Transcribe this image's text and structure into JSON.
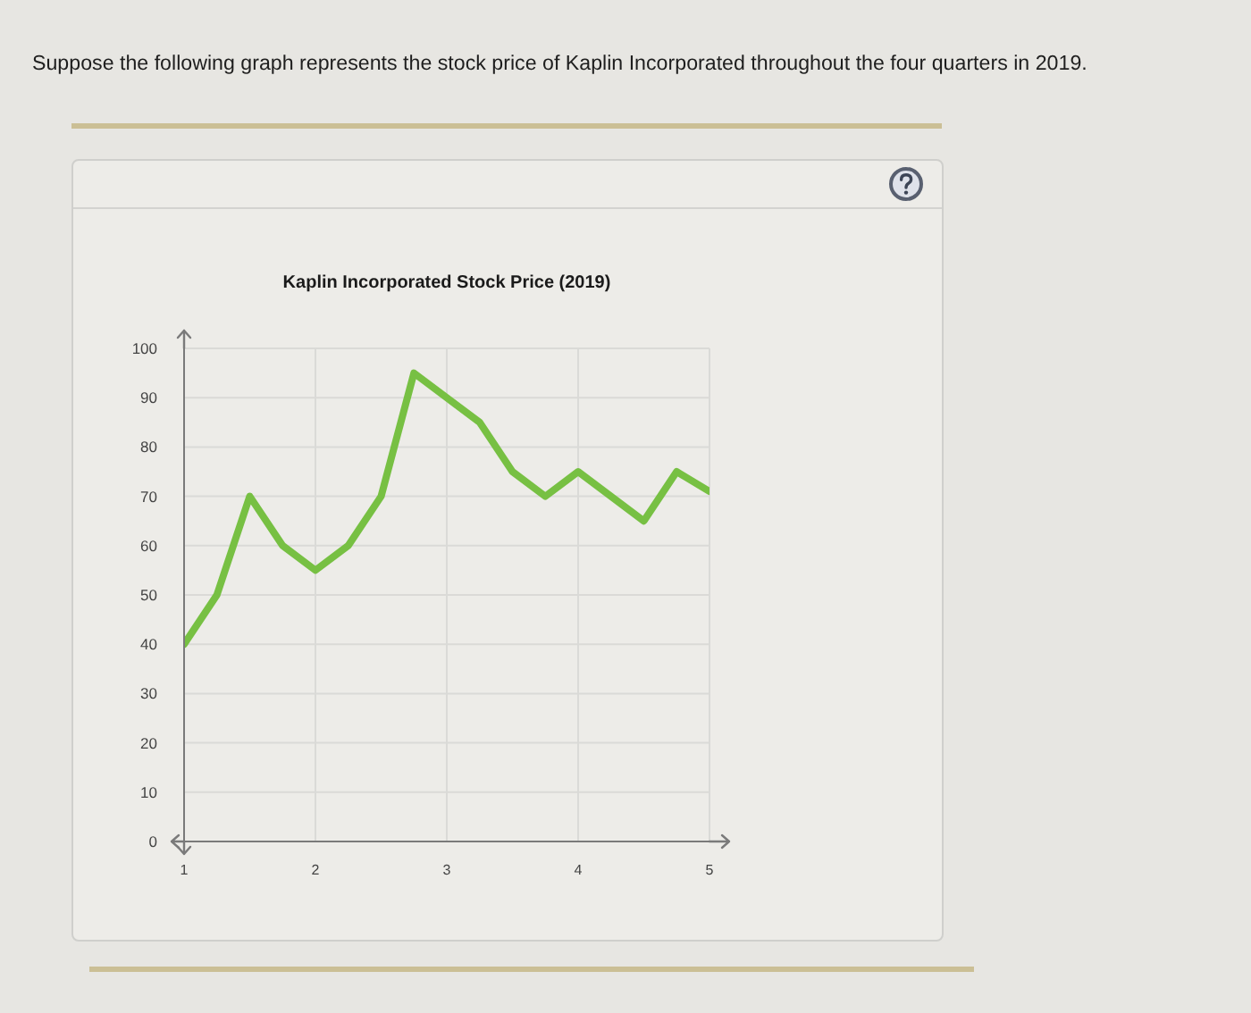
{
  "chart_data": {
    "type": "line",
    "title": "Kaplin Incorporated Stock Price (2019)",
    "annotations": [
      "Suppose the following graph represents the stock price of Kaplin Incorporated throughout the four quarters in 2019."
    ],
    "x": [
      1,
      1.25,
      1.5,
      1.75,
      2,
      2.25,
      2.5,
      2.75,
      3.25,
      3.5,
      3.75,
      4,
      4.5,
      4.75,
      5
    ],
    "series": [
      {
        "color": "#77c043",
        "values": [
          40,
          50,
          70,
          60,
          55,
          60,
          70,
          95,
          85,
          75,
          70,
          75,
          65,
          75,
          71
        ]
      }
    ],
    "xlim": [
      1,
      5
    ],
    "xticks": [
      1,
      2,
      3,
      4,
      5
    ],
    "ylim": [
      0,
      100
    ],
    "yticks": [
      0,
      10,
      20,
      30,
      40,
      50,
      60,
      70,
      80,
      90,
      100
    ],
    "grid": true
  }
}
